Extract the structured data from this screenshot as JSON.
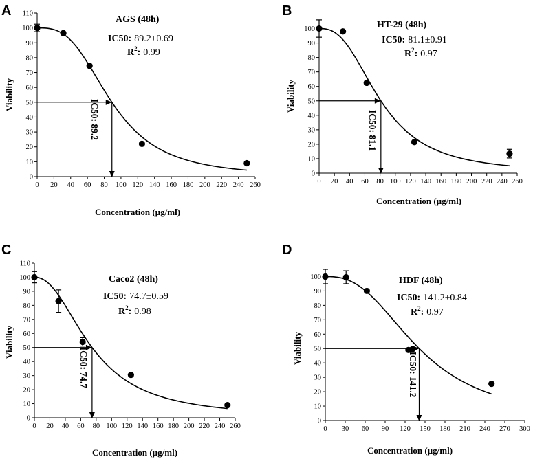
{
  "chart_data": [
    {
      "type": "scatter",
      "panel_label": "A",
      "title": "AGS (48h)",
      "ic50_label": "IC50:",
      "ic50_text": "89.2±0.69",
      "r2_label": "R",
      "r2_sup": "2",
      "r2_colon": ":",
      "r2_text": "0.99",
      "xlabel": "Concentration (µg/ml)",
      "ylabel": "Viability",
      "xlim": [
        0,
        260
      ],
      "ylim": [
        0,
        110
      ],
      "xticks": [
        0,
        20,
        40,
        60,
        80,
        100,
        120,
        140,
        160,
        180,
        200,
        220,
        240,
        260
      ],
      "yticks": [
        0,
        10,
        20,
        30,
        40,
        50,
        60,
        70,
        80,
        90,
        100,
        110
      ],
      "x": [
        0,
        31.25,
        62.5,
        125,
        250
      ],
      "y": [
        100,
        96.5,
        74.5,
        22,
        9
      ],
      "err": [
        2.5,
        0,
        0,
        0,
        0
      ],
      "ic50": 89.2,
      "hill": 3.0,
      "curve_range": [
        0,
        250
      ],
      "marker_text": "IC50: 89.2"
    },
    {
      "type": "scatter",
      "panel_label": "B",
      "title": "HT-29 (48h)",
      "ic50_label": "IC50:",
      "ic50_text": "81.1±0.91",
      "r2_label": "R",
      "r2_sup": "2",
      "r2_colon": ":",
      "r2_text": "0.97",
      "xlabel": "Concentration (µg/ml)",
      "ylabel": "Viability",
      "xlim": [
        0,
        260
      ],
      "ylim": [
        0,
        105
      ],
      "xticks": [
        0,
        20,
        40,
        60,
        80,
        100,
        120,
        140,
        160,
        180,
        200,
        220,
        240,
        260
      ],
      "yticks": [
        0,
        10,
        20,
        30,
        40,
        50,
        60,
        70,
        80,
        90,
        100
      ],
      "x": [
        0,
        31.25,
        62.5,
        125,
        250
      ],
      "y": [
        100,
        98,
        62.5,
        21.5,
        13.5
      ],
      "err": [
        6,
        0,
        0,
        0,
        3
      ],
      "ic50": 81.1,
      "hill": 2.6,
      "curve_range": [
        0,
        250
      ],
      "marker_text": "IC50: 81.1"
    },
    {
      "type": "scatter",
      "panel_label": "C",
      "title": "Caco2 (48h)",
      "ic50_label": "IC50:",
      "ic50_text": "74.7±0.59",
      "r2_label": "R",
      "r2_sup": "2",
      "r2_colon": ":",
      "r2_text": "0.98",
      "xlabel": "Concentration (µg/ml)",
      "ylabel": "Viability",
      "xlim": [
        0,
        260
      ],
      "ylim": [
        0,
        110
      ],
      "xticks": [
        0,
        20,
        40,
        60,
        80,
        100,
        120,
        140,
        160,
        180,
        200,
        220,
        240,
        260
      ],
      "yticks": [
        0,
        10,
        20,
        30,
        40,
        50,
        60,
        70,
        80,
        90,
        100,
        110
      ],
      "x": [
        0,
        31.25,
        62.5,
        125,
        250
      ],
      "y": [
        100,
        83,
        54,
        30.5,
        9
      ],
      "err": [
        4,
        8,
        3,
        0,
        0
      ],
      "ic50": 74.7,
      "hill": 2.2,
      "curve_range": [
        0,
        250
      ],
      "marker_text": "IC50: 74.7"
    },
    {
      "type": "scatter",
      "panel_label": "D",
      "title": "HDF (48h)",
      "ic50_label": "IC50:",
      "ic50_text": "141.2±0.84",
      "r2_label": "R",
      "r2_sup": "2",
      "r2_colon": ":",
      "r2_text": "0.97",
      "xlabel": "Concentration (µg/ml)",
      "ylabel": "Viability",
      "xlim": [
        0,
        300
      ],
      "ylim": [
        0,
        105
      ],
      "xticks": [
        0,
        30,
        60,
        90,
        120,
        150,
        180,
        210,
        240,
        270,
        300
      ],
      "yticks": [
        0,
        10,
        20,
        30,
        40,
        50,
        60,
        70,
        80,
        90,
        100
      ],
      "x": [
        0,
        31.25,
        62.5,
        125,
        131,
        250
      ],
      "y": [
        100,
        99.5,
        90,
        49,
        49.5,
        25.5
      ],
      "err": [
        5,
        4.5,
        0,
        0,
        0,
        0
      ],
      "ic50": 141.2,
      "hill": 2.6,
      "curve_range": [
        0,
        250
      ],
      "marker_text": "IC50: 141.2"
    }
  ]
}
